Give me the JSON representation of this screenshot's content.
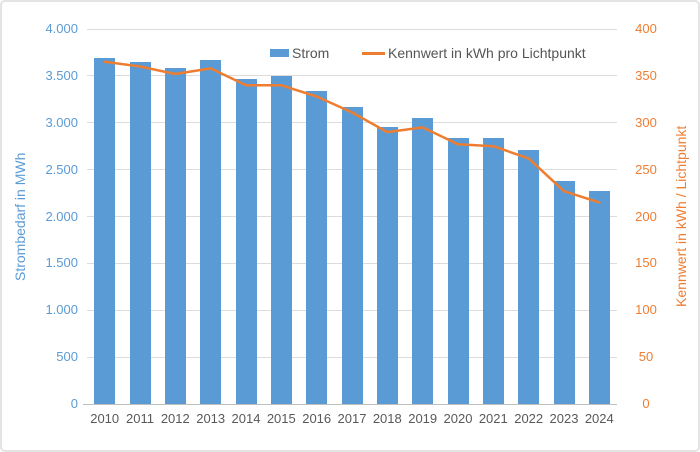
{
  "chart": {
    "legend": {
      "strom": "Strom",
      "kennwert": "Kennwert in kWh pro Lichtpunkt"
    },
    "axes": {
      "left_title": "Strombedarf in MWh",
      "right_title": "Kennwert in kWh / Lichtpunkt",
      "left_ticks": [
        "4.000",
        "3.500",
        "3.000",
        "2.500",
        "2.000",
        "1.500",
        "1.000",
        "500",
        "0"
      ],
      "right_ticks": [
        "400",
        "350",
        "300",
        "250",
        "200",
        "150",
        "100",
        "50",
        "0"
      ]
    },
    "colors": {
      "bar": "#5B9BD5",
      "line": "#ED7D31",
      "grid": "#dcdcdc",
      "axis_line": "#bfbfbf",
      "left_axis_text": "#5B9BD5",
      "right_axis_text": "#ED7D31",
      "category_text": "#595959"
    }
  },
  "chart_data": {
    "type": "bar",
    "title": "",
    "categories": [
      "2010",
      "2011",
      "2012",
      "2013",
      "2014",
      "2015",
      "2016",
      "2017",
      "2018",
      "2019",
      "2020",
      "2021",
      "2022",
      "2023",
      "2024"
    ],
    "series": [
      {
        "name": "Strom",
        "type": "bar",
        "axis": "left",
        "values": [
          3695,
          3645,
          3580,
          3670,
          3465,
          3500,
          3335,
          3170,
          2955,
          3050,
          2835,
          2835,
          2710,
          2380,
          2270
        ]
      },
      {
        "name": "Kennwert in kWh pro Lichtpunkt",
        "type": "line",
        "axis": "right",
        "values": [
          365,
          360,
          352,
          358,
          340,
          340,
          328,
          311,
          290,
          295,
          277,
          275,
          262,
          227,
          215
        ]
      }
    ],
    "left_axis": {
      "label": "Strombedarf in MWh",
      "range": [
        0,
        4000
      ],
      "tick_step": 500
    },
    "right_axis": {
      "label": "Kennwert in kWh / Lichtpunkt",
      "range": [
        0,
        400
      ],
      "tick_step": 50
    },
    "grid": true,
    "legend_position": "top"
  }
}
